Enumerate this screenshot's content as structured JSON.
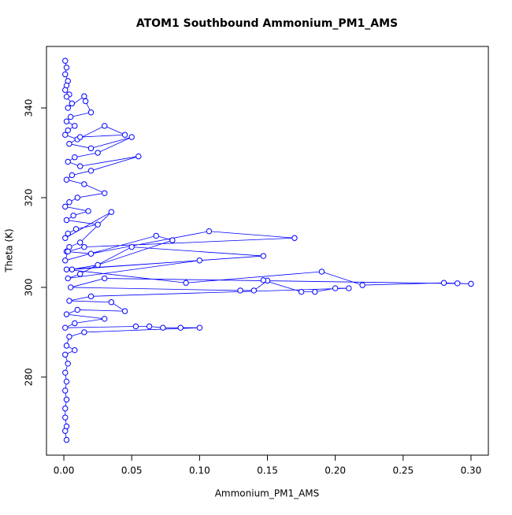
{
  "chart_data": {
    "type": "line",
    "marker": "circle",
    "title": "ATOM1 Southbound Ammonium_PM1_AMS",
    "x_label": "Ammonium_PM1_AMS",
    "y_label": "Theta (K)",
    "color": "#0000ff",
    "xlim": [
      -0.0128,
      0.3128
    ],
    "ylim": [
      262.6,
      353.7
    ],
    "xticks": [
      {
        "value": 0,
        "label": "0.00"
      },
      {
        "value": 0.05,
        "label": "0.05"
      },
      {
        "value": 0.1,
        "label": "0.10"
      },
      {
        "value": 0.15,
        "label": "0.15"
      },
      {
        "value": 0.2,
        "label": "0.20"
      },
      {
        "value": 0.25,
        "label": "0.25"
      },
      {
        "value": 0.3,
        "label": "0.30"
      }
    ],
    "yticks": [
      280,
      300,
      320,
      340
    ],
    "x": [
      0.001,
      0.002,
      0.001,
      0.003,
      0.002,
      0.001,
      0.004,
      0.002,
      0.006,
      0.003,
      0.015,
      0.016,
      0.02,
      0.005,
      0.002,
      0.008,
      0.003,
      0.001,
      0.01,
      0.03,
      0.045,
      0.012,
      0.004,
      0.02,
      0.05,
      0.025,
      0.008,
      0.003,
      0.012,
      0.055,
      0.02,
      0.006,
      0.002,
      0.015,
      0.03,
      0.01,
      0.004,
      0.001,
      0.018,
      0.007,
      0.002,
      0.025,
      0.009,
      0.003,
      0.001,
      0.035,
      0.012,
      0.004,
      0.002,
      0.02,
      0.107,
      0.17,
      0.015,
      0.003,
      0.001,
      0.068,
      0.08,
      0.025,
      0.006,
      0.147,
      0.05,
      0.012,
      0.003,
      0.1,
      0.002,
      0.09,
      0.19,
      0.22,
      0.28,
      0.29,
      0.3,
      0.03,
      0.005,
      0.13,
      0.14,
      0.15,
      0.147,
      0.175,
      0.185,
      0.2,
      0.21,
      0.02,
      0.004,
      0.035,
      0.045,
      0.01,
      0.002,
      0.03,
      0.008,
      0.001,
      0.053,
      0.063,
      0.073,
      0.086,
      0.1,
      0.015,
      0.004,
      0.002,
      0.008,
      0.001,
      0.003,
      0.001,
      0.002,
      0.001,
      0.002,
      0.001,
      0.001,
      0.002,
      0.001,
      0.002
    ],
    "values": [
      350.5,
      349,
      347.5,
      346,
      345,
      344,
      343,
      342.5,
      341,
      340,
      342.6,
      341.5,
      339,
      338,
      337,
      336,
      335,
      334,
      333,
      336,
      334,
      333.5,
      332,
      331,
      333.5,
      330,
      329,
      328,
      327,
      329.2,
      326,
      325,
      324,
      323,
      321,
      320,
      319,
      318,
      317,
      316,
      315,
      314,
      313,
      312,
      311,
      316.8,
      310,
      309,
      308,
      307.5,
      312.5,
      311,
      309,
      308,
      306,
      311.5,
      310.5,
      305,
      304,
      307,
      309,
      303,
      302,
      306,
      304,
      301,
      303.5,
      300.5,
      301,
      300.9,
      300.8,
      302,
      300,
      299.3,
      299.3,
      301.5,
      301.6,
      299,
      299,
      299.8,
      299.8,
      298,
      297,
      296.7,
      294.7,
      295,
      294,
      293,
      292,
      291,
      291.3,
      291.3,
      291,
      291,
      291,
      290,
      289,
      287,
      286,
      285,
      283,
      281,
      279,
      277,
      275,
      273,
      271,
      269,
      268,
      266
    ]
  }
}
